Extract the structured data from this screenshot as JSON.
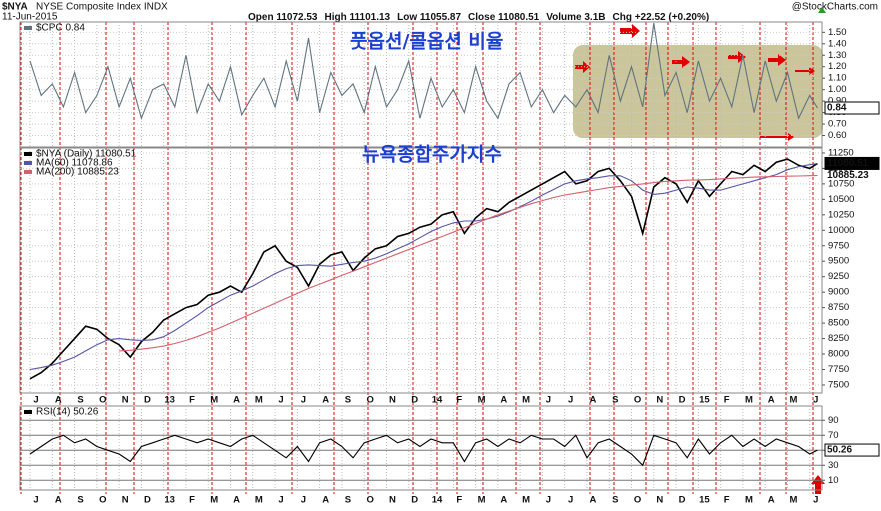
{
  "header": {
    "symbol": "$NYA",
    "name": "NYSE Composite Index INDX",
    "date": "11-Jun-2015",
    "quote": [
      "Open 11072.53",
      "High 11101.13",
      "Low 11055.87",
      "Close 11080.51",
      "Volume 3.1B",
      "Chg +22.52 (+0.20%)"
    ],
    "source": "@StockCharts.com"
  },
  "chart_data": [
    {
      "type": "line",
      "annotations": [
        "풋옵션/콜옵션 비율"
      ],
      "x": [
        0,
        0.5,
        1,
        1.5,
        2,
        2.5,
        3,
        3.5,
        4,
        4.5,
        5,
        5.5,
        6,
        6.5,
        7,
        7.5,
        8,
        8.5,
        9,
        9.5,
        10,
        10.5,
        11,
        11.5,
        12,
        12.5,
        13,
        13.5,
        14,
        14.5,
        15,
        15.5,
        16,
        16.5,
        17,
        17.5,
        18,
        18.5,
        19,
        19.5,
        20,
        20.5,
        21,
        21.5,
        22,
        22.5,
        23,
        23.5,
        24,
        24.5,
        25,
        25.5,
        26,
        26.5,
        27,
        27.5,
        28,
        28.5,
        29,
        29.5,
        30,
        30.5,
        31,
        31.5,
        32,
        32.5,
        33,
        33.5,
        34,
        34.5,
        35,
        35.35
      ],
      "series": [
        {
          "name": "$CPC 0.84",
          "color": "#5f7480",
          "values": [
            1.25,
            0.95,
            1.05,
            0.85,
            1.15,
            0.8,
            0.95,
            1.2,
            0.85,
            1.1,
            0.75,
            1.0,
            1.05,
            0.85,
            1.3,
            0.8,
            1.05,
            0.9,
            1.2,
            0.78,
            0.95,
            1.1,
            0.85,
            1.25,
            0.9,
            1.45,
            0.8,
            1.15,
            0.95,
            1.05,
            0.8,
            1.2,
            0.85,
            1.0,
            1.25,
            0.75,
            1.1,
            0.85,
            1.0,
            0.8,
            1.2,
            0.9,
            0.75,
            1.05,
            1.15,
            0.85,
            1.0,
            0.8,
            0.95,
            0.85,
            1.0,
            0.8,
            1.3,
            0.9,
            1.2,
            0.85,
            1.58,
            0.95,
            1.15,
            0.8,
            1.25,
            0.9,
            1.1,
            0.85,
            1.3,
            0.8,
            1.25,
            0.9,
            1.15,
            0.75,
            0.95,
            0.84
          ]
        }
      ],
      "xlim": [
        -0.45,
        35.55
      ],
      "ylim": [
        0.5,
        1.59
      ],
      "yticks": [
        {
          "value": 0.6,
          "label": "0.60"
        },
        {
          "value": 0.7,
          "label": "0.70"
        },
        {
          "value": 0.8,
          "label": "0.80"
        },
        {
          "value": 0.9,
          "label": "0.90"
        },
        {
          "value": 1.0,
          "label": "1.00"
        },
        {
          "value": 1.1,
          "label": "1.10"
        },
        {
          "value": 1.2,
          "label": "1.20"
        },
        {
          "value": 1.3,
          "label": "1.30"
        },
        {
          "value": 1.4,
          "label": "1.40"
        },
        {
          "value": 1.5,
          "label": "1.50"
        }
      ],
      "grid": true
    },
    {
      "type": "line",
      "annotations": [
        "뉴욕종합주가지수"
      ],
      "x": [
        0,
        0.5,
        1,
        1.5,
        2,
        2.5,
        3,
        3.5,
        4,
        4.5,
        5,
        5.5,
        6,
        6.5,
        7,
        7.5,
        8,
        8.5,
        9,
        9.5,
        10,
        10.5,
        11,
        11.5,
        12,
        12.5,
        13,
        13.5,
        14,
        14.5,
        15,
        15.5,
        16,
        16.5,
        17,
        17.5,
        18,
        18.5,
        19,
        19.5,
        20,
        20.5,
        21,
        21.5,
        22,
        22.5,
        23,
        23.5,
        24,
        24.5,
        25,
        25.5,
        26,
        26.5,
        27,
        27.5,
        28,
        28.5,
        29,
        29.5,
        30,
        30.5,
        31,
        31.5,
        32,
        32.5,
        33,
        33.5,
        34,
        34.5,
        35,
        35.35
      ],
      "series": [
        {
          "name": "$NYA (Daily) 11080.51",
          "color": "#000000",
          "values": [
            7600,
            7700,
            7850,
            8050,
            8250,
            8450,
            8400,
            8250,
            8150,
            7950,
            8200,
            8350,
            8550,
            8650,
            8750,
            8800,
            8950,
            9000,
            9100,
            9000,
            9300,
            9650,
            9750,
            9500,
            9400,
            9100,
            9450,
            9600,
            9650,
            9350,
            9550,
            9700,
            9750,
            9900,
            9950,
            10050,
            10100,
            10250,
            10300,
            9950,
            10200,
            10350,
            10300,
            10450,
            10550,
            10650,
            10750,
            10850,
            10950,
            10750,
            10800,
            10950,
            11000,
            10800,
            10550,
            9950,
            10700,
            10850,
            10750,
            10450,
            10800,
            10550,
            10750,
            10950,
            10900,
            11050,
            10950,
            11100,
            11150,
            11050,
            11000,
            11080.51
          ]
        },
        {
          "name": "MA(60) 11078.86",
          "color": "#5555a5",
          "values": [
            7750,
            7780,
            7820,
            7880,
            7950,
            8050,
            8150,
            8230,
            8250,
            8230,
            8220,
            8230,
            8280,
            8380,
            8500,
            8620,
            8750,
            8850,
            8950,
            9020,
            9100,
            9200,
            9300,
            9380,
            9430,
            9440,
            9430,
            9420,
            9450,
            9480,
            9500,
            9550,
            9620,
            9700,
            9780,
            9880,
            9980,
            10060,
            10120,
            10150,
            10150,
            10180,
            10230,
            10300,
            10380,
            10470,
            10570,
            10660,
            10750,
            10800,
            10830,
            10850,
            10880,
            10880,
            10800,
            10650,
            10580,
            10600,
            10650,
            10700,
            10680,
            10650,
            10650,
            10700,
            10750,
            10800,
            10850,
            10900,
            10980,
            11030,
            11060,
            11078.86
          ]
        },
        {
          "name": "MA(200) 10885.23",
          "color": "#d4606c",
          "values": [
            null,
            null,
            null,
            null,
            null,
            null,
            null,
            null,
            8050,
            8060,
            8080,
            8100,
            8130,
            8170,
            8220,
            8280,
            8350,
            8420,
            8500,
            8580,
            8660,
            8740,
            8820,
            8900,
            8980,
            9060,
            9130,
            9200,
            9270,
            9340,
            9410,
            9480,
            9550,
            9620,
            9690,
            9760,
            9830,
            9900,
            9970,
            10040,
            10110,
            10180,
            10250,
            10310,
            10370,
            10430,
            10480,
            10530,
            10570,
            10600,
            10630,
            10660,
            10690,
            10710,
            10730,
            10750,
            10770,
            10790,
            10800,
            10810,
            10815,
            10820,
            10830,
            10840,
            10850,
            10860,
            10865,
            10870,
            10875,
            10878,
            10882,
            10885.23
          ]
        }
      ],
      "xlim": [
        -0.45,
        35.55
      ],
      "ylim": [
        7370,
        11330
      ],
      "yticks": [
        7500,
        7750,
        8000,
        8250,
        8500,
        8750,
        9000,
        9250,
        9500,
        9750,
        10000,
        10250,
        10500,
        10750,
        11000,
        11250
      ],
      "xticks": [
        {
          "value": 0,
          "label": "J"
        },
        {
          "value": 1,
          "label": "A"
        },
        {
          "value": 2,
          "label": "S"
        },
        {
          "value": 3,
          "label": "O"
        },
        {
          "value": 4,
          "label": "N"
        },
        {
          "value": 5,
          "label": "D"
        },
        {
          "value": 6,
          "label": "13"
        },
        {
          "value": 7,
          "label": "F"
        },
        {
          "value": 8,
          "label": "M"
        },
        {
          "value": 9,
          "label": "A"
        },
        {
          "value": 10,
          "label": "M"
        },
        {
          "value": 11,
          "label": "J"
        },
        {
          "value": 12,
          "label": "J"
        },
        {
          "value": 13,
          "label": "A"
        },
        {
          "value": 14,
          "label": "S"
        },
        {
          "value": 15,
          "label": "O"
        },
        {
          "value": 16,
          "label": "N"
        },
        {
          "value": 17,
          "label": "D"
        },
        {
          "value": 18,
          "label": "14"
        },
        {
          "value": 19,
          "label": "F"
        },
        {
          "value": 20,
          "label": "M"
        },
        {
          "value": 21,
          "label": "A"
        },
        {
          "value": 22,
          "label": "M"
        },
        {
          "value": 23,
          "label": "J"
        },
        {
          "value": 24,
          "label": "J"
        },
        {
          "value": 25,
          "label": "A"
        },
        {
          "value": 26,
          "label": "S"
        },
        {
          "value": 27,
          "label": "O"
        },
        {
          "value": 28,
          "label": "N"
        },
        {
          "value": 29,
          "label": "D"
        },
        {
          "value": 30,
          "label": "15"
        },
        {
          "value": 31,
          "label": "F"
        },
        {
          "value": 32,
          "label": "M"
        },
        {
          "value": 33,
          "label": "A"
        },
        {
          "value": 34,
          "label": "M"
        },
        {
          "value": 35,
          "label": "J"
        }
      ],
      "grid": true
    },
    {
      "type": "line",
      "x": [
        0,
        0.5,
        1,
        1.5,
        2,
        2.5,
        3,
        3.5,
        4,
        4.5,
        5,
        5.5,
        6,
        6.5,
        7,
        7.5,
        8,
        8.5,
        9,
        9.5,
        10,
        10.5,
        11,
        11.5,
        12,
        12.5,
        13,
        13.5,
        14,
        14.5,
        15,
        15.5,
        16,
        16.5,
        17,
        17.5,
        18,
        18.5,
        19,
        19.5,
        20,
        20.5,
        21,
        21.5,
        22,
        22.5,
        23,
        23.5,
        24,
        24.5,
        25,
        25.5,
        26,
        26.5,
        27,
        27.5,
        28,
        28.5,
        29,
        29.5,
        30,
        30.5,
        31,
        31.5,
        32,
        32.5,
        33,
        33.5,
        34,
        34.5,
        35,
        35.35
      ],
      "series": [
        {
          "name": "RSI(14) 50.26",
          "color": "#000000",
          "values": [
            45,
            55,
            65,
            70,
            60,
            65,
            55,
            50,
            45,
            35,
            55,
            60,
            65,
            70,
            65,
            60,
            65,
            60,
            55,
            65,
            70,
            60,
            50,
            40,
            55,
            35,
            60,
            65,
            55,
            40,
            60,
            65,
            70,
            60,
            65,
            55,
            65,
            60,
            60,
            35,
            60,
            65,
            55,
            65,
            60,
            70,
            65,
            65,
            55,
            70,
            40,
            60,
            65,
            55,
            45,
            30,
            70,
            65,
            60,
            40,
            65,
            45,
            60,
            70,
            55,
            65,
            55,
            65,
            60,
            55,
            45,
            50.26
          ]
        }
      ],
      "xlim": [
        -0.45,
        35.55
      ],
      "ylim": [
        -3,
        109
      ],
      "yticks": [
        10,
        30,
        50,
        70,
        90
      ],
      "xticks": [
        {
          "value": 0,
          "label": "J"
        },
        {
          "value": 1,
          "label": "A"
        },
        {
          "value": 2,
          "label": "S"
        },
        {
          "value": 3,
          "label": "O"
        },
        {
          "value": 4,
          "label": "N"
        },
        {
          "value": 5,
          "label": "D"
        },
        {
          "value": 6,
          "label": "13"
        },
        {
          "value": 7,
          "label": "F"
        },
        {
          "value": 8,
          "label": "M"
        },
        {
          "value": 9,
          "label": "A"
        },
        {
          "value": 10,
          "label": "M"
        },
        {
          "value": 11,
          "label": "J"
        },
        {
          "value": 12,
          "label": "J"
        },
        {
          "value": 13,
          "label": "A"
        },
        {
          "value": 14,
          "label": "S"
        },
        {
          "value": 15,
          "label": "O"
        },
        {
          "value": 16,
          "label": "N"
        },
        {
          "value": 17,
          "label": "D"
        },
        {
          "value": 18,
          "label": "14"
        },
        {
          "value": 19,
          "label": "F"
        },
        {
          "value": 20,
          "label": "M"
        },
        {
          "value": 21,
          "label": "A"
        },
        {
          "value": 22,
          "label": "M"
        },
        {
          "value": 23,
          "label": "J"
        },
        {
          "value": 24,
          "label": "J"
        },
        {
          "value": 25,
          "label": "A"
        },
        {
          "value": 26,
          "label": "S"
        },
        {
          "value": 27,
          "label": "O"
        },
        {
          "value": 28,
          "label": "N"
        },
        {
          "value": 29,
          "label": "D"
        },
        {
          "value": 30,
          "label": "15"
        },
        {
          "value": 31,
          "label": "F"
        },
        {
          "value": 32,
          "label": "M"
        },
        {
          "value": 33,
          "label": "A"
        },
        {
          "value": 34,
          "label": "M"
        },
        {
          "value": 35,
          "label": "J"
        }
      ],
      "grid": true
    }
  ]
}
